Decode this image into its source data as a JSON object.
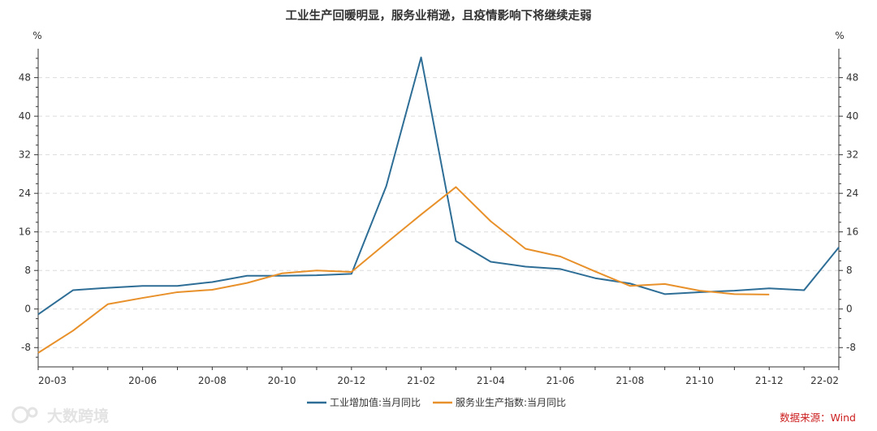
{
  "chart_data": {
    "type": "line",
    "title": "工业生产回暖明显，服务业稍逊，且疫情影响下将继续走弱",
    "y_unit_left": "%",
    "y_unit_right": "%",
    "ylim": [
      -12,
      54
    ],
    "y_ticks": [
      -8,
      0,
      8,
      16,
      24,
      32,
      40,
      48
    ],
    "y_tick_labels": [
      "-8",
      "0",
      "8",
      "16",
      "24",
      "32",
      "40",
      "48"
    ],
    "x_start": "20-03",
    "x_end": "22-02",
    "x_tick_labels": [
      "20-03",
      "20-06",
      "20-08",
      "20-10",
      "20-12",
      "21-02",
      "21-04",
      "21-06",
      "21-08",
      "21-10",
      "21-12",
      "22-02"
    ],
    "x_tick_months": [
      "20-03",
      "20-06",
      "20-08",
      "20-10",
      "20-12",
      "21-02",
      "21-04",
      "21-06",
      "21-08",
      "21-10",
      "21-12",
      "22-02"
    ],
    "grid": true,
    "legend_position": "bottom",
    "series": [
      {
        "name": "工业增加值:当月同比",
        "color": "#2e6e96",
        "x": [
          "20-03",
          "20-04",
          "20-05",
          "20-06",
          "20-07",
          "20-08",
          "20-09",
          "20-10",
          "20-11",
          "20-12",
          "21-01",
          "21-02",
          "21-03",
          "21-04",
          "21-05",
          "21-06",
          "21-07",
          "21-08",
          "21-09",
          "21-10",
          "21-11",
          "21-12",
          "22-01",
          "22-02"
        ],
        "values": [
          -1.1,
          3.9,
          4.4,
          4.8,
          4.8,
          5.6,
          6.9,
          6.9,
          7.0,
          7.3,
          25.5,
          52.2,
          14.1,
          9.8,
          8.8,
          8.3,
          6.4,
          5.3,
          3.1,
          3.5,
          3.8,
          4.3,
          3.9,
          12.8
        ]
      },
      {
        "name": "服务业生产指数:当月同比",
        "color": "#e8902a",
        "x": [
          "20-03",
          "20-04",
          "20-05",
          "20-06",
          "20-07",
          "20-08",
          "20-09",
          "20-10",
          "20-11",
          "20-12",
          "21-01",
          "21-02",
          "21-03",
          "21-04",
          "21-05",
          "21-06",
          "21-07",
          "21-08",
          "21-09",
          "21-10",
          "21-11",
          "21-12"
        ],
        "values": [
          -9.1,
          -4.5,
          1.0,
          2.3,
          3.5,
          4.0,
          5.4,
          7.4,
          8.0,
          7.7,
          13.7,
          19.6,
          25.3,
          18.2,
          12.5,
          10.9,
          7.8,
          4.8,
          5.2,
          3.8,
          3.1,
          3.0
        ]
      }
    ]
  },
  "footer": {
    "source": "数据来源：Wind",
    "watermark_text": "大数跨境",
    "watermark_logo": "logo-icon"
  }
}
